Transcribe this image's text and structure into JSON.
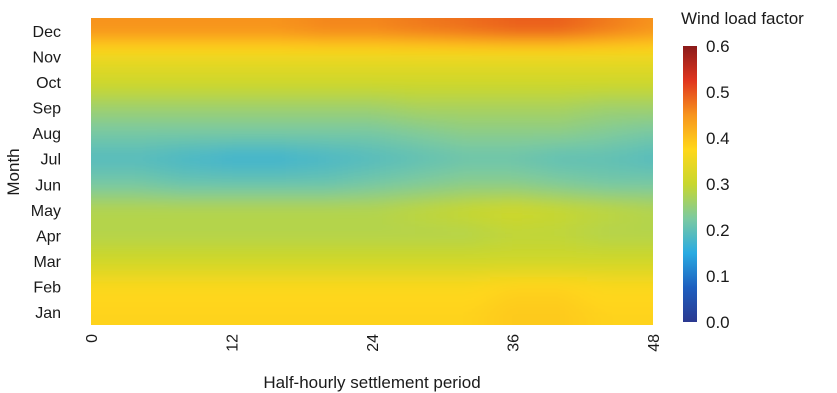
{
  "chart_data": {
    "type": "heatmap",
    "title": "",
    "xlabel": "Half-hourly settlement period",
    "ylabel": "Month",
    "xlim": [
      0,
      48
    ],
    "x_ticks": [
      "0",
      "12",
      "24",
      "36",
      "48"
    ],
    "y_categories": [
      "Jan",
      "Feb",
      "Mar",
      "Apr",
      "May",
      "Jun",
      "Jul",
      "Aug",
      "Sep",
      "Oct",
      "Nov",
      "Dec"
    ],
    "x": [
      0,
      4,
      8,
      12,
      16,
      20,
      24,
      28,
      32,
      36,
      40,
      44,
      48
    ],
    "z": [
      [
        0.38,
        0.38,
        0.38,
        0.38,
        0.38,
        0.38,
        0.38,
        0.38,
        0.38,
        0.39,
        0.39,
        0.38,
        0.38
      ],
      [
        0.37,
        0.37,
        0.37,
        0.37,
        0.37,
        0.37,
        0.37,
        0.37,
        0.37,
        0.38,
        0.38,
        0.37,
        0.37
      ],
      [
        0.31,
        0.31,
        0.31,
        0.31,
        0.31,
        0.31,
        0.31,
        0.31,
        0.31,
        0.31,
        0.31,
        0.31,
        0.31
      ],
      [
        0.28,
        0.28,
        0.28,
        0.28,
        0.28,
        0.28,
        0.28,
        0.28,
        0.28,
        0.29,
        0.29,
        0.28,
        0.28
      ],
      [
        0.28,
        0.28,
        0.28,
        0.28,
        0.28,
        0.28,
        0.28,
        0.29,
        0.3,
        0.31,
        0.3,
        0.29,
        0.28
      ],
      [
        0.22,
        0.22,
        0.21,
        0.21,
        0.21,
        0.21,
        0.22,
        0.23,
        0.24,
        0.24,
        0.23,
        0.22,
        0.22
      ],
      [
        0.19,
        0.19,
        0.18,
        0.17,
        0.17,
        0.18,
        0.19,
        0.2,
        0.21,
        0.21,
        0.2,
        0.2,
        0.19
      ],
      [
        0.22,
        0.22,
        0.22,
        0.22,
        0.22,
        0.22,
        0.22,
        0.23,
        0.24,
        0.24,
        0.24,
        0.23,
        0.22
      ],
      [
        0.26,
        0.26,
        0.26,
        0.26,
        0.26,
        0.26,
        0.26,
        0.27,
        0.27,
        0.27,
        0.27,
        0.26,
        0.26
      ],
      [
        0.31,
        0.31,
        0.31,
        0.31,
        0.31,
        0.31,
        0.31,
        0.31,
        0.31,
        0.31,
        0.31,
        0.31,
        0.31
      ],
      [
        0.35,
        0.35,
        0.35,
        0.35,
        0.35,
        0.35,
        0.35,
        0.35,
        0.35,
        0.35,
        0.35,
        0.35,
        0.35
      ],
      [
        0.45,
        0.45,
        0.45,
        0.45,
        0.45,
        0.46,
        0.46,
        0.47,
        0.48,
        0.49,
        0.49,
        0.47,
        0.45
      ]
    ],
    "colorbar": {
      "label": "Wind load factor",
      "min": 0.0,
      "max": 0.6,
      "ticks": [
        "0.0",
        "0.1",
        "0.2",
        "0.3",
        "0.4",
        "0.5",
        "0.6"
      ]
    },
    "colormap": [
      "#2b3990",
      "#1e5fbf",
      "#29abe2",
      "#7ccaa0",
      "#c8d72e",
      "#ffd71a",
      "#f7941d",
      "#e0351e",
      "#8b1a1a"
    ],
    "grid": false
  }
}
